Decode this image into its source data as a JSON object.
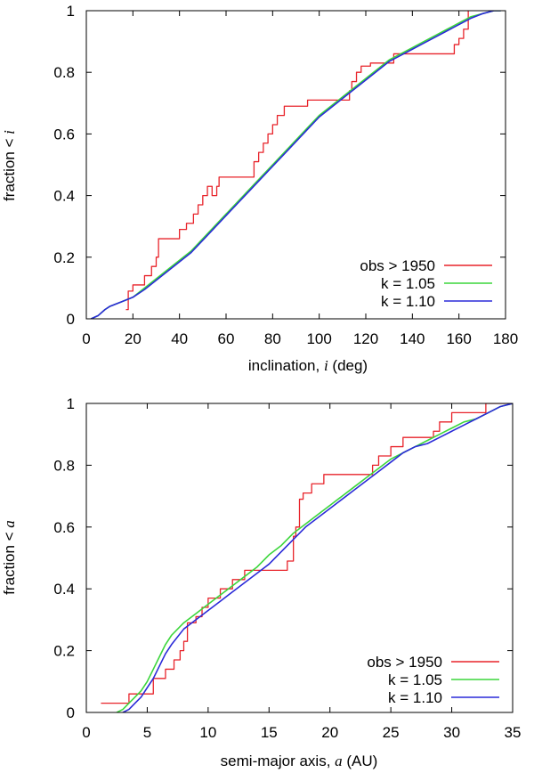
{
  "chart_data": [
    {
      "type": "line",
      "title": "",
      "xlabel": "inclination, ",
      "xlabel_var": "i",
      "xlabel_unit": " (deg)",
      "ylabel": "fraction < ",
      "ylabel_var": "i",
      "xlim": [
        0,
        180
      ],
      "ylim": [
        0,
        1
      ],
      "xticks": [
        0,
        20,
        40,
        60,
        80,
        100,
        120,
        140,
        160,
        180
      ],
      "yticks": [
        0,
        0.2,
        0.4,
        0.6,
        0.8,
        1
      ],
      "xtick_labels": [
        "0",
        "20",
        "40",
        "60",
        "80",
        "100",
        "120",
        "140",
        "160",
        "180"
      ],
      "ytick_labels": [
        "0",
        "0.2",
        "0.4",
        "0.6",
        "0.8",
        "1"
      ],
      "legend_position": "bottom-right",
      "series": [
        {
          "name": "obs > 1950",
          "color": "#e8232a",
          "style": "step",
          "x": [
            17,
            18,
            20,
            25,
            28,
            30,
            31,
            40,
            43,
            46,
            48,
            50,
            52,
            54,
            56,
            57,
            58,
            72,
            74,
            76,
            78,
            80,
            82,
            83,
            85,
            95,
            97,
            113,
            114,
            115,
            116,
            118,
            120,
            122,
            124,
            132,
            134,
            158,
            160,
            162,
            164
          ],
          "y": [
            0.03,
            0.09,
            0.11,
            0.14,
            0.17,
            0.2,
            0.26,
            0.29,
            0.31,
            0.34,
            0.37,
            0.4,
            0.43,
            0.4,
            0.43,
            0.46,
            0.46,
            0.51,
            0.54,
            0.57,
            0.6,
            0.63,
            0.66,
            0.66,
            0.69,
            0.71,
            0.71,
            0.74,
            0.77,
            0.77,
            0.8,
            0.82,
            0.82,
            0.83,
            0.83,
            0.86,
            0.86,
            0.89,
            0.91,
            0.94,
            1.0
          ]
        },
        {
          "name": "k = 1.05",
          "color": "#3cd63c",
          "style": "smooth",
          "x": [
            2,
            5,
            8,
            10,
            15,
            20,
            25,
            30,
            35,
            40,
            45,
            50,
            55,
            60,
            65,
            70,
            75,
            80,
            85,
            90,
            95,
            100,
            105,
            110,
            115,
            120,
            125,
            130,
            135,
            140,
            145,
            150,
            155,
            160,
            165,
            170,
            175,
            178
          ],
          "y": [
            0.0,
            0.01,
            0.03,
            0.04,
            0.055,
            0.07,
            0.1,
            0.13,
            0.16,
            0.19,
            0.22,
            0.26,
            0.3,
            0.34,
            0.38,
            0.42,
            0.46,
            0.5,
            0.54,
            0.58,
            0.62,
            0.66,
            0.69,
            0.72,
            0.75,
            0.78,
            0.81,
            0.84,
            0.86,
            0.88,
            0.9,
            0.92,
            0.94,
            0.96,
            0.98,
            0.99,
            1.0,
            1.0
          ]
        },
        {
          "name": "k = 1.10",
          "color": "#2a2ad8",
          "style": "smooth",
          "x": [
            2,
            5,
            8,
            10,
            15,
            20,
            25,
            30,
            35,
            40,
            45,
            50,
            55,
            60,
            65,
            70,
            75,
            80,
            85,
            90,
            95,
            100,
            105,
            110,
            115,
            120,
            125,
            130,
            135,
            140,
            145,
            150,
            155,
            160,
            165,
            170,
            175,
            178
          ],
          "y": [
            0.0,
            0.01,
            0.03,
            0.04,
            0.055,
            0.07,
            0.095,
            0.125,
            0.155,
            0.185,
            0.215,
            0.255,
            0.295,
            0.335,
            0.375,
            0.415,
            0.455,
            0.495,
            0.535,
            0.575,
            0.615,
            0.655,
            0.685,
            0.715,
            0.745,
            0.775,
            0.805,
            0.835,
            0.855,
            0.875,
            0.895,
            0.915,
            0.935,
            0.955,
            0.975,
            0.99,
            1.0,
            1.0
          ]
        }
      ]
    },
    {
      "type": "line",
      "title": "",
      "xlabel": "semi-major axis, ",
      "xlabel_var": "a",
      "xlabel_unit": " (AU)",
      "ylabel": "fraction < ",
      "ylabel_var": "a",
      "xlim": [
        0,
        35
      ],
      "ylim": [
        0,
        1
      ],
      "xticks": [
        0,
        5,
        10,
        15,
        20,
        25,
        30,
        35
      ],
      "yticks": [
        0,
        0.2,
        0.4,
        0.6,
        0.8,
        1
      ],
      "xtick_labels": [
        "0",
        "5",
        "10",
        "15",
        "20",
        "25",
        "30",
        "35"
      ],
      "ytick_labels": [
        "0",
        "0.2",
        "0.4",
        "0.6",
        "0.8",
        "1"
      ],
      "legend_position": "bottom-right",
      "series": [
        {
          "name": "obs > 1950",
          "color": "#e8232a",
          "style": "step",
          "x": [
            1.2,
            3.5,
            5.5,
            6.5,
            7.2,
            7.7,
            8.0,
            8.3,
            9.0,
            9.5,
            10.0,
            11.0,
            12.0,
            13.0,
            16.5,
            17.0,
            17.2,
            17.5,
            17.8,
            18.5,
            19.5,
            23.0,
            23.5,
            24.0,
            25.0,
            26.0,
            28.0,
            28.5,
            29.0,
            30.0,
            32.8,
            34.5
          ],
          "y": [
            0.03,
            0.06,
            0.11,
            0.14,
            0.17,
            0.2,
            0.23,
            0.29,
            0.31,
            0.34,
            0.37,
            0.4,
            0.43,
            0.46,
            0.49,
            0.57,
            0.6,
            0.69,
            0.71,
            0.74,
            0.77,
            0.77,
            0.8,
            0.83,
            0.86,
            0.89,
            0.89,
            0.91,
            0.94,
            0.97,
            1.0,
            1.0
          ]
        },
        {
          "name": "k = 1.05",
          "color": "#3cd63c",
          "style": "smooth",
          "x": [
            2.5,
            3,
            3.5,
            4,
            4.5,
            5,
            5.5,
            6,
            6.5,
            7,
            8,
            9,
            10,
            11,
            12,
            13,
            14,
            15,
            16,
            17,
            18,
            19,
            20,
            21,
            22,
            23,
            24,
            25,
            26,
            27,
            28,
            29,
            30,
            31,
            32,
            33,
            34,
            35
          ],
          "y": [
            0.0,
            0.01,
            0.03,
            0.05,
            0.07,
            0.1,
            0.14,
            0.18,
            0.22,
            0.25,
            0.29,
            0.32,
            0.35,
            0.38,
            0.41,
            0.44,
            0.47,
            0.51,
            0.54,
            0.58,
            0.61,
            0.64,
            0.67,
            0.7,
            0.73,
            0.76,
            0.79,
            0.82,
            0.84,
            0.86,
            0.88,
            0.9,
            0.92,
            0.94,
            0.95,
            0.97,
            0.99,
            1.0
          ]
        },
        {
          "name": "k = 1.10",
          "color": "#2a2ad8",
          "style": "smooth",
          "x": [
            3,
            3.5,
            4,
            4.5,
            5,
            5.5,
            6,
            6.5,
            7,
            8,
            9,
            10,
            11,
            12,
            13,
            14,
            15,
            16,
            17,
            18,
            19,
            20,
            21,
            22,
            23,
            24,
            25,
            26,
            27,
            28,
            29,
            30,
            31,
            32,
            33,
            34,
            35
          ],
          "y": [
            0.0,
            0.01,
            0.03,
            0.05,
            0.08,
            0.11,
            0.15,
            0.19,
            0.22,
            0.27,
            0.3,
            0.33,
            0.36,
            0.39,
            0.42,
            0.45,
            0.48,
            0.52,
            0.56,
            0.6,
            0.63,
            0.66,
            0.69,
            0.72,
            0.75,
            0.78,
            0.81,
            0.84,
            0.86,
            0.87,
            0.89,
            0.91,
            0.93,
            0.95,
            0.97,
            0.99,
            1.0
          ]
        }
      ]
    }
  ]
}
